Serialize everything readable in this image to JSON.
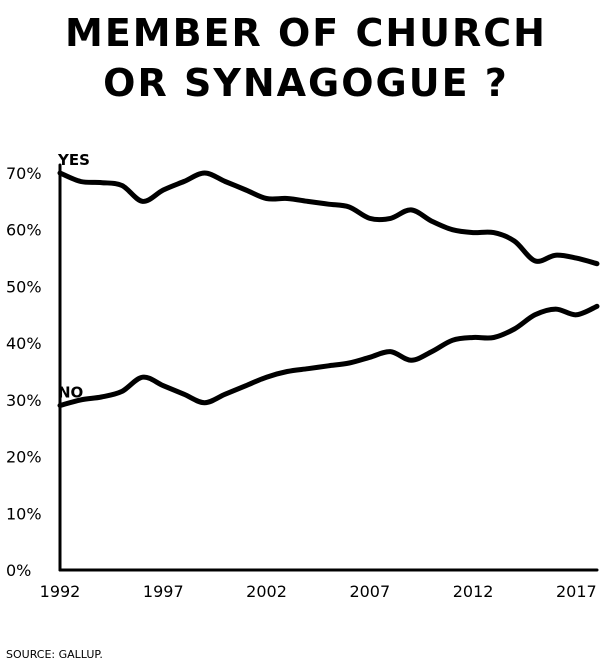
{
  "title_line1": "MEMBER OF CHURCH",
  "title_line2": "OR SYNAGOGUE ?",
  "source": "SOURCE: GALLUP.",
  "line_color": "#000000",
  "chart_data": {
    "type": "line",
    "title": "MEMBER OF CHURCH OR SYNAGOGUE ?",
    "ylim": [
      0,
      70
    ],
    "xlim": [
      1992,
      2018
    ],
    "grid": false,
    "y_ticks": [
      "0%",
      "10%",
      "20%",
      "30%",
      "40%",
      "50%",
      "60%",
      "70%"
    ],
    "x_ticks": [
      "1992",
      "1997",
      "2002",
      "2007",
      "2012",
      "2017"
    ],
    "series": [
      {
        "name": "YES",
        "x": [
          1992,
          1993,
          1994,
          1995,
          1996,
          1997,
          1998,
          1999,
          2000,
          2001,
          2002,
          2003,
          2004,
          2005,
          2006,
          2007,
          2008,
          2009,
          2010,
          2011,
          2012,
          2013,
          2014,
          2015,
          2016,
          2017,
          2018
        ],
        "values": [
          70,
          68.5,
          68.3,
          67.8,
          65,
          67,
          68.5,
          70,
          68.5,
          67,
          65.5,
          65.5,
          65,
          64.5,
          64,
          62,
          62,
          63.5,
          61.5,
          60,
          59.5,
          59.5,
          58,
          54.5,
          55.5,
          55,
          54
        ]
      },
      {
        "name": "NO",
        "x": [
          1992,
          1993,
          1994,
          1995,
          1996,
          1997,
          1998,
          1999,
          2000,
          2001,
          2002,
          2003,
          2004,
          2005,
          2006,
          2007,
          2008,
          2009,
          2010,
          2011,
          2012,
          2013,
          2014,
          2015,
          2016,
          2017,
          2018
        ],
        "values": [
          29,
          30,
          30.5,
          31.5,
          34,
          32.5,
          31,
          29.5,
          31,
          32.5,
          34,
          35,
          35.5,
          36,
          36.5,
          37.5,
          38.5,
          37,
          38.5,
          40.5,
          41,
          41,
          42.5,
          45,
          46,
          45,
          46.5
        ]
      }
    ]
  }
}
